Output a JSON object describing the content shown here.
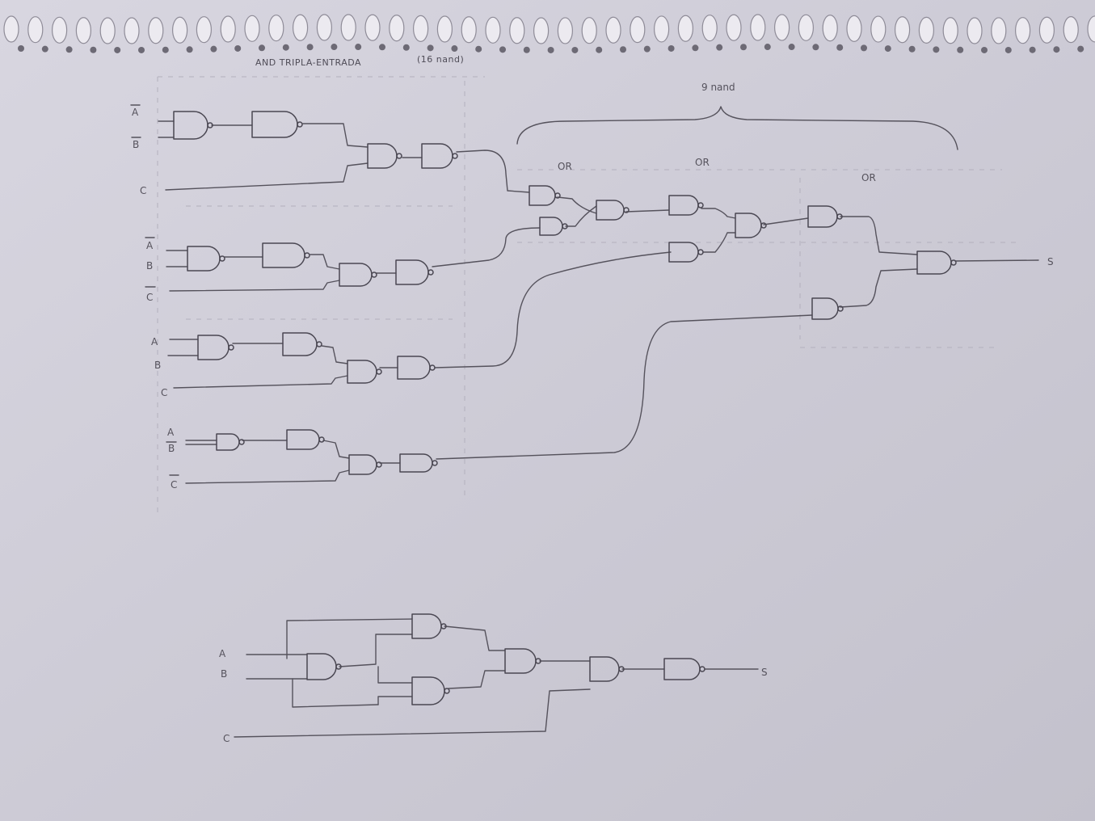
{
  "header": {
    "title": "AND TRIPLA-ENTRADA",
    "title_note": "(16 nand)",
    "brace_label": "9 nand"
  },
  "or_labels": [
    "OR",
    "OR",
    "OR"
  ],
  "inputs": {
    "row1": [
      "A",
      "B",
      "C"
    ],
    "row2": [
      "A",
      "B",
      "C"
    ],
    "row3": [
      "A",
      "B",
      "C"
    ],
    "row4": [
      "A",
      "B",
      "C"
    ],
    "bottom": [
      "A",
      "B",
      "C"
    ]
  },
  "outputs": {
    "main": "S",
    "bottom": "S"
  }
}
